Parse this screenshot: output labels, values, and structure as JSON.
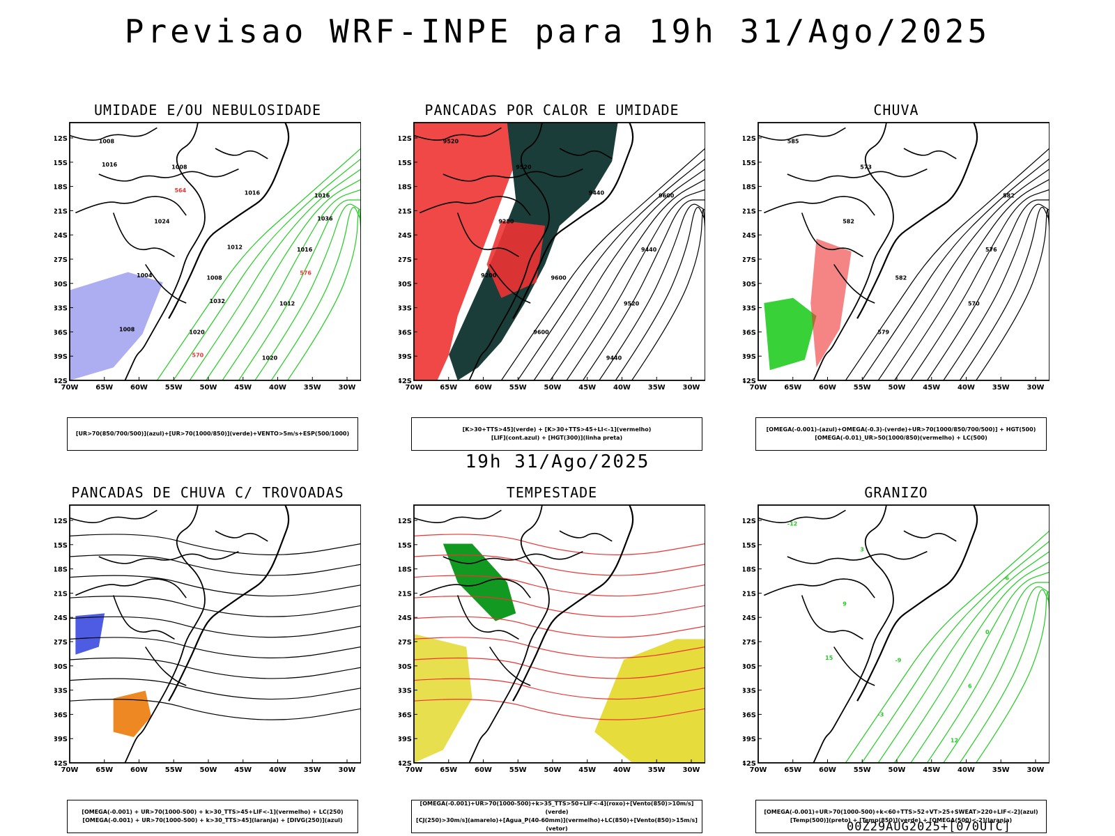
{
  "header": {
    "title": "Previsao WRF-INPE  para 19h 31/Ago/2025",
    "subtitle": "19h 31/Ago/2025",
    "footer": "00Z29AUG2025+[070UTC]"
  },
  "axes": {
    "lat_labels": [
      "12S",
      "15S",
      "18S",
      "21S",
      "24S",
      "27S",
      "30S",
      "33S",
      "36S",
      "39S",
      "42S"
    ],
    "lon_labels": [
      "70W",
      "65W",
      "60W",
      "55W",
      "50W",
      "45W",
      "40W",
      "35W",
      "30W"
    ]
  },
  "colors": {
    "coast": "#000000",
    "green": "#22cc22",
    "red": "#ee3333",
    "blue": "#2233dd",
    "lightblue": "#9999ee",
    "darkgreen": "#1b3d3a",
    "yellow": "#e6dc3c",
    "orange": "#ee8822",
    "darkgreenfill": "#119922"
  },
  "panels": [
    {
      "id": "umidade",
      "title": "UMIDADE E/OU NEBULOSIDADE",
      "legend": [
        "[UR>70(850/700/500)](azul)+[UR>70(1000/850)](verde)+VENTO>5m/s+ESP(500/1000)"
      ],
      "contour_labels": [
        "1008",
        "1008",
        "1016",
        "1020",
        "1016",
        "1008",
        "1012",
        "1024",
        "1020",
        "1004",
        "1016",
        "1008",
        "1012",
        "1016",
        "1032",
        "1036",
        "570",
        "576",
        "564"
      ]
    },
    {
      "id": "pancadas_calor",
      "title": "PANCADAS POR CALOR E UMIDADE",
      "legend": [
        "[K>30+TTS>45](verde) + [K>30+TTS>45+LI<-1](vermelho)",
        "[LIF](cont.azul) + [HGT(300)](linha preta)"
      ],
      "contour_labels": [
        "9520",
        "9600",
        "9600",
        "9600",
        "9440",
        "9520",
        "9520",
        "9280",
        "9440",
        "9200",
        "9440"
      ]
    },
    {
      "id": "chuva",
      "title": "CHUVA",
      "legend": [
        "[OMEGA(-0.001)-(azul)+OMEGA(-0.3)-(verde)+UR>70(1000/850/700/500)] + HGT(500)",
        "[OMEGA(-0.01)_UR>50(1000/850)(vermelho) + LC(500)"
      ],
      "contour_labels": [
        "585",
        "582",
        "582",
        "579",
        "576",
        "573",
        "570",
        "582"
      ]
    },
    {
      "id": "pancadas_trovoadas",
      "title": "PANCADAS DE CHUVA C/ TROVOADAS",
      "legend": [
        "[OMEGA(-0.001) + UR>70(1000-500) + k>30_TTS>45+LIF<-1](vermelho) + LC(250)",
        "[OMEGA(-0.001) + UR>70(1000-500) + k>30_TTS>45](laranja) + [DIVG(250)](azul)"
      ],
      "contour_labels": []
    },
    {
      "id": "tempestade",
      "title": "TEMPESTADE",
      "legend": [
        "[OMEGA(-0.001)+UR>70(1000-500)+k>35_TTS>50+LIF<-4](roxo)+[Vento(850)>10m/s](verde)",
        "[CJ(250)>30m/s](amarelo)+[Agua_P(40-60mm)](vermelho)+LC(850)+[Vento(850)>15m/s](vetor)"
      ],
      "contour_labels": []
    },
    {
      "id": "granizo",
      "title": "GRANIZO",
      "legend": [
        "[OMEGA(-0.001)+UR>70(1000-500)+k<60+TTS>52+VT>25+SWEAT>220+LIF<-2](azul)",
        "[Temp(500)](preto) + [Temp(850)](verde) + [OMEGA(500)<-2](laranja)"
      ],
      "contour_labels": [
        "-12",
        "-9",
        "-6",
        "-3",
        "0",
        "3",
        "6",
        "9",
        "12",
        "15"
      ]
    }
  ]
}
